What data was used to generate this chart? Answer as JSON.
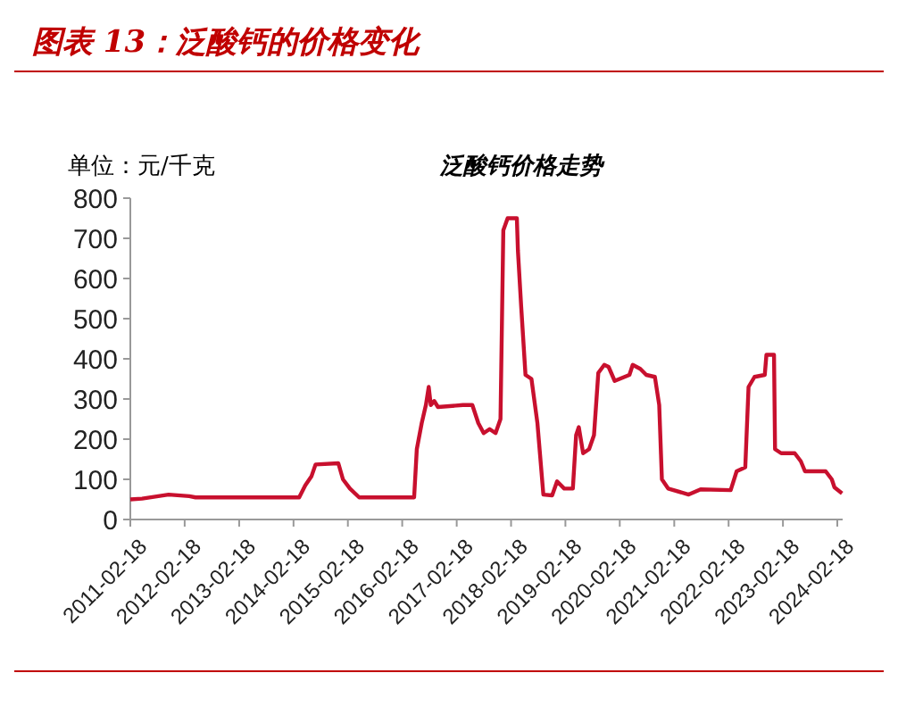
{
  "chart_data": {
    "type": "line",
    "title": "图表 13：泛酸钙的价格变化",
    "subtitle": "泛酸钙价格走势",
    "ylabel": "单位：元/千克",
    "x": [
      "2011-02-18",
      "2011-05-08",
      "2011-11-02",
      "2012-03-20",
      "2012-05-01",
      "2014-03-28",
      "2014-05-08",
      "2014-06-18",
      "2014-07-16",
      "2014-12-16",
      "2015-01-16",
      "2015-03-04",
      "2015-05-05",
      "2016-05-08",
      "2016-05-26",
      "2016-06-28",
      "2016-07-26",
      "2016-08-14",
      "2016-08-28",
      "2016-09-20",
      "2016-10-15",
      "2017-04-01",
      "2017-06-03",
      "2017-07-13",
      "2017-08-18",
      "2017-09-27",
      "2017-11-06",
      "2017-12-09",
      "2017-12-28",
      "2018-01-26",
      "2018-03-29",
      "2018-04-05",
      "2018-04-27",
      "2018-05-26",
      "2018-07-05",
      "2018-08-14",
      "2018-09-23",
      "2018-11-21",
      "2018-12-24",
      "2019-02-10",
      "2019-04-09",
      "2019-05-01",
      "2019-05-19",
      "2019-06-17",
      "2019-07-27",
      "2019-08-29",
      "2019-09-27",
      "2019-11-06",
      "2019-12-05",
      "2020-01-15",
      "2020-04-23",
      "2020-05-15",
      "2020-07-05",
      "2020-08-14",
      "2020-10-11",
      "2020-11-09",
      "2020-11-27",
      "2021-01-08",
      "2021-05-26",
      "2021-08-14",
      "2022-03-04",
      "2022-04-13",
      "2022-06-10",
      "2022-07-02",
      "2022-08-11",
      "2022-10-19",
      "2022-10-30",
      "2022-12-20",
      "2022-12-27",
      "2023-02-06",
      "2023-05-08",
      "2023-06-18",
      "2023-07-16",
      "2023-12-02",
      "2024-01-12",
      "2024-01-30",
      "2024-03-21"
    ],
    "series": [
      {
        "color": "#c8102e",
        "values": [
          50,
          52,
          62,
          58,
          55,
          55,
          85,
          107,
          137,
          140,
          100,
          77,
          55,
          55,
          175,
          240,
          285,
          330,
          285,
          295,
          280,
          285,
          285,
          240,
          215,
          225,
          215,
          250,
          720,
          750,
          750,
          670,
          530,
          360,
          350,
          240,
          62,
          60,
          95,
          77,
          77,
          210,
          230,
          165,
          175,
          210,
          365,
          385,
          380,
          345,
          360,
          385,
          375,
          360,
          355,
          285,
          100,
          77,
          62,
          75,
          73,
          120,
          130,
          330,
          355,
          360,
          410,
          410,
          175,
          165,
          165,
          145,
          120,
          120,
          100,
          80,
          65
        ]
      }
    ],
    "xlim": [
      "2011-02-18",
      "2024-03-25"
    ],
    "xticks": [
      "2011-02-18",
      "2012-02-18",
      "2013-02-18",
      "2014-02-18",
      "2015-02-18",
      "2016-02-18",
      "2017-02-18",
      "2018-02-18",
      "2019-02-18",
      "2020-02-18",
      "2021-02-18",
      "2022-02-18",
      "2023-02-18",
      "2024-02-18"
    ],
    "ylim": [
      0,
      800
    ],
    "yticks": [
      0,
      100,
      200,
      300,
      400,
      500,
      600,
      700,
      800
    ],
    "grid": false
  }
}
